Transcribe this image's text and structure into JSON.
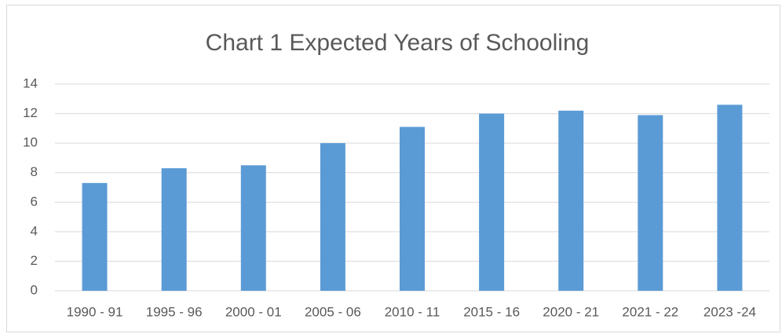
{
  "chart_data": {
    "type": "bar",
    "title": "Chart 1 Expected Years of Schooling",
    "categories": [
      "1990 - 91",
      "1995 - 96",
      "2000 - 01",
      "2005 - 06",
      "2010 - 11",
      "2015 - 16",
      "2020 - 21",
      "2021 - 22",
      "2023 -24"
    ],
    "values": [
      7.3,
      8.3,
      8.5,
      10.0,
      11.1,
      12.0,
      12.2,
      11.9,
      12.6
    ],
    "color": "#5b9bd5",
    "ylim": [
      0,
      14
    ],
    "yticks": [
      0,
      2,
      4,
      6,
      8,
      10,
      12,
      14
    ],
    "grid": true
  }
}
